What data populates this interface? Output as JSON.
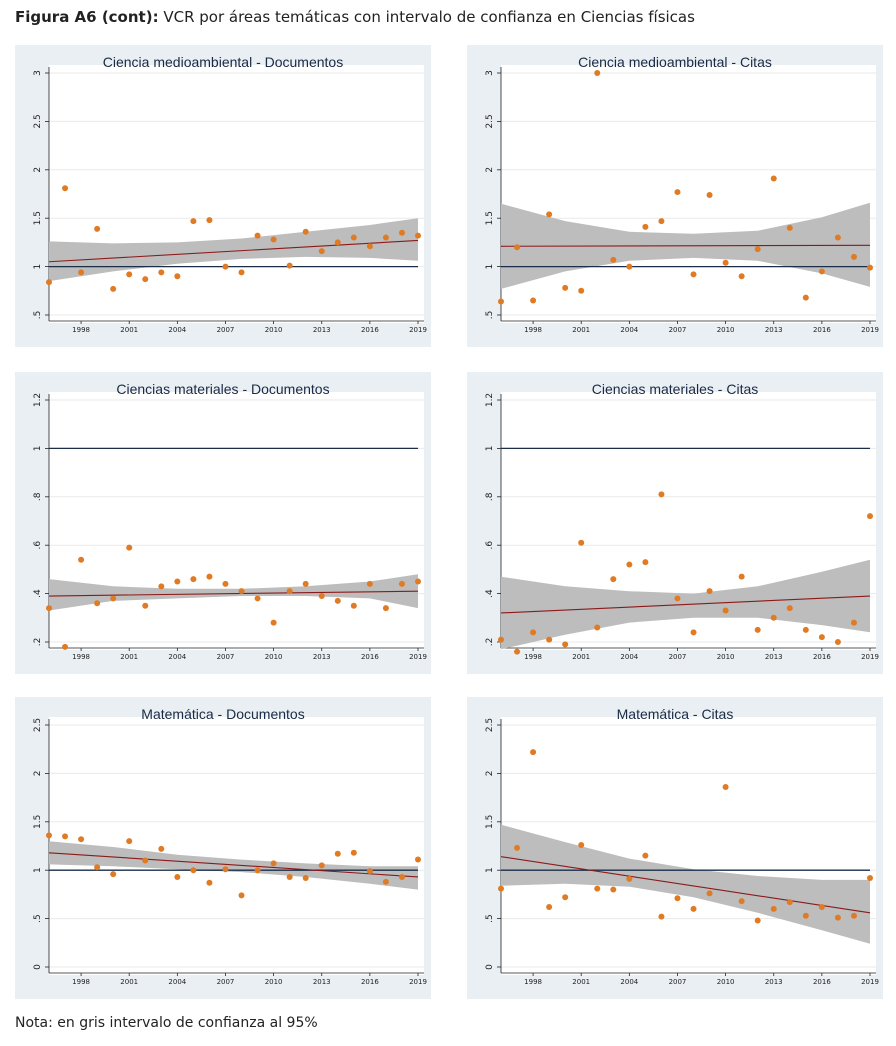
{
  "figure": {
    "title_bold": "Figura A6 (cont):",
    "title_rest": " VCR por áreas temáticas con intervalo de confianza en Ciencias físicas",
    "note": "Nota: en gris intervalo de confianza al 95%"
  },
  "colors": {
    "panel_bg": "#e9eff3",
    "band": "#bdbdbd",
    "point": "#e07b24",
    "trend": "#8b1a1a",
    "reference": "#1a2e4a"
  },
  "chart_data": [
    {
      "type": "scatter",
      "title": "Ciencia medioambiental - Documentos",
      "xlim": [
        1996,
        2019
      ],
      "ylim": [
        0.5,
        3
      ],
      "yticks": [
        0.5,
        1,
        1.5,
        2,
        2.5,
        3
      ],
      "ytick_labels": [
        ".5",
        "1",
        "1.5",
        "2",
        "2.5",
        "3"
      ],
      "xticks": [
        1998,
        2001,
        2004,
        2007,
        2010,
        2013,
        2016,
        2019
      ],
      "reference_line": 1,
      "points": {
        "x": [
          1996,
          1997,
          1998,
          1999,
          2000,
          2001,
          2002,
          2003,
          2004,
          2005,
          2006,
          2007,
          2008,
          2009,
          2010,
          2011,
          2012,
          2013,
          2014,
          2015,
          2016,
          2017,
          2018,
          2019
        ],
        "y": [
          0.84,
          1.81,
          0.94,
          1.39,
          0.77,
          0.92,
          0.87,
          0.94,
          0.9,
          1.47,
          1.48,
          1.0,
          0.94,
          1.32,
          1.28,
          1.01,
          1.36,
          1.16,
          1.25,
          1.3,
          1.21,
          1.3,
          1.35,
          1.32
        ]
      },
      "trend": {
        "x": [
          1996,
          2019
        ],
        "y": [
          1.05,
          1.27
        ]
      },
      "band": {
        "x": [
          1996,
          2000,
          2004,
          2008,
          2012,
          2016,
          2019
        ],
        "lower": [
          0.85,
          0.95,
          1.03,
          1.08,
          1.1,
          1.09,
          1.06
        ],
        "upper": [
          1.26,
          1.24,
          1.25,
          1.29,
          1.36,
          1.43,
          1.5
        ]
      }
    },
    {
      "type": "scatter",
      "title": "Ciencia medioambiental - Citas",
      "xlim": [
        1996,
        2019
      ],
      "ylim": [
        0.5,
        3
      ],
      "yticks": [
        0.5,
        1,
        1.5,
        2,
        2.5,
        3
      ],
      "ytick_labels": [
        ".5",
        "1",
        "1.5",
        "2",
        "2.5",
        "3"
      ],
      "xticks": [
        1998,
        2001,
        2004,
        2007,
        2010,
        2013,
        2016,
        2019
      ],
      "reference_line": 1,
      "points": {
        "x": [
          1996,
          1997,
          1998,
          1999,
          2000,
          2001,
          2002,
          2003,
          2004,
          2005,
          2006,
          2007,
          2008,
          2009,
          2010,
          2011,
          2012,
          2013,
          2014,
          2015,
          2016,
          2017,
          2018,
          2019
        ],
        "y": [
          0.64,
          1.2,
          0.65,
          1.54,
          0.78,
          0.75,
          3.0,
          1.07,
          1.0,
          1.41,
          1.47,
          1.77,
          0.92,
          1.74,
          1.04,
          0.9,
          1.18,
          1.91,
          1.4,
          0.68,
          0.95,
          1.3,
          1.1,
          0.99
        ]
      },
      "trend": {
        "x": [
          1996,
          2019
        ],
        "y": [
          1.21,
          1.22
        ]
      },
      "band": {
        "x": [
          1996,
          2000,
          2004,
          2008,
          2012,
          2016,
          2019
        ],
        "lower": [
          0.77,
          0.95,
          1.06,
          1.09,
          1.06,
          0.93,
          0.79
        ],
        "upper": [
          1.65,
          1.47,
          1.36,
          1.34,
          1.37,
          1.51,
          1.66
        ]
      }
    },
    {
      "type": "scatter",
      "title": "Ciencias materiales - Documentos",
      "xlim": [
        1996,
        2019
      ],
      "ylim": [
        0.2,
        1.2
      ],
      "yticks": [
        0.2,
        0.4,
        0.6,
        0.8,
        1,
        1.2
      ],
      "ytick_labels": [
        ".2",
        ".4",
        ".6",
        ".8",
        "1",
        "1.2"
      ],
      "xticks": [
        1998,
        2001,
        2004,
        2007,
        2010,
        2013,
        2016,
        2019
      ],
      "reference_line": 1,
      "points": {
        "x": [
          1996,
          1997,
          1998,
          1999,
          2000,
          2001,
          2002,
          2003,
          2004,
          2005,
          2006,
          2007,
          2008,
          2009,
          2010,
          2011,
          2012,
          2013,
          2014,
          2015,
          2016,
          2017,
          2018,
          2019
        ],
        "y": [
          0.34,
          0.18,
          0.54,
          0.36,
          0.38,
          0.59,
          0.35,
          0.43,
          0.45,
          0.46,
          0.47,
          0.44,
          0.41,
          0.38,
          0.28,
          0.41,
          0.44,
          0.39,
          0.37,
          0.35,
          0.44,
          0.34,
          0.44,
          0.45
        ]
      },
      "trend": {
        "x": [
          1996,
          2019
        ],
        "y": [
          0.39,
          0.41
        ]
      },
      "band": {
        "x": [
          1996,
          2000,
          2004,
          2008,
          2012,
          2016,
          2019
        ],
        "lower": [
          0.33,
          0.37,
          0.38,
          0.39,
          0.39,
          0.38,
          0.34
        ],
        "upper": [
          0.46,
          0.43,
          0.42,
          0.42,
          0.43,
          0.45,
          0.48
        ]
      }
    },
    {
      "type": "scatter",
      "title": "Ciencias materiales - Citas",
      "xlim": [
        1996,
        2019
      ],
      "ylim": [
        0.2,
        1.2
      ],
      "yticks": [
        0.2,
        0.4,
        0.6,
        0.8,
        1,
        1.2
      ],
      "ytick_labels": [
        ".2",
        ".4",
        ".6",
        ".8",
        "1",
        "1.2"
      ],
      "xticks": [
        1998,
        2001,
        2004,
        2007,
        2010,
        2013,
        2016,
        2019
      ],
      "reference_line": 1,
      "points": {
        "x": [
          1996,
          1997,
          1998,
          1999,
          2000,
          2001,
          2002,
          2003,
          2004,
          2005,
          2006,
          2007,
          2008,
          2009,
          2010,
          2011,
          2012,
          2013,
          2014,
          2015,
          2016,
          2017,
          2018,
          2019
        ],
        "y": [
          0.21,
          0.16,
          0.24,
          0.21,
          0.19,
          0.61,
          0.26,
          0.46,
          0.52,
          0.53,
          0.81,
          0.38,
          0.24,
          0.41,
          0.33,
          0.47,
          0.25,
          0.3,
          0.34,
          0.25,
          0.22,
          0.2,
          0.28,
          0.72
        ]
      },
      "trend": {
        "x": [
          1996,
          2019
        ],
        "y": [
          0.32,
          0.39
        ]
      },
      "band": {
        "x": [
          1996,
          2000,
          2004,
          2008,
          2012,
          2016,
          2019
        ],
        "lower": [
          0.17,
          0.23,
          0.28,
          0.3,
          0.3,
          0.27,
          0.24
        ],
        "upper": [
          0.47,
          0.43,
          0.41,
          0.4,
          0.43,
          0.49,
          0.54
        ]
      }
    },
    {
      "type": "scatter",
      "title": "Matemática - Documentos",
      "xlim": [
        1996,
        2019
      ],
      "ylim": [
        0,
        2.5
      ],
      "yticks": [
        0,
        0.5,
        1,
        1.5,
        2,
        2.5
      ],
      "ytick_labels": [
        "0",
        ".5",
        "1",
        "1.5",
        "2",
        "2.5"
      ],
      "xticks": [
        1998,
        2001,
        2004,
        2007,
        2010,
        2013,
        2016,
        2019
      ],
      "reference_line": 1,
      "points": {
        "x": [
          1996,
          1997,
          1998,
          1999,
          2000,
          2001,
          2002,
          2003,
          2004,
          2005,
          2006,
          2007,
          2008,
          2009,
          2010,
          2011,
          2012,
          2013,
          2014,
          2015,
          2016,
          2017,
          2018,
          2019
        ],
        "y": [
          1.36,
          1.35,
          1.32,
          1.03,
          0.96,
          1.3,
          1.1,
          1.22,
          0.93,
          1.0,
          0.87,
          1.01,
          0.74,
          1.0,
          1.07,
          0.93,
          0.92,
          1.05,
          1.17,
          1.18,
          0.99,
          0.88,
          0.93,
          1.11
        ]
      },
      "trend": {
        "x": [
          1996,
          2019
        ],
        "y": [
          1.18,
          0.93
        ]
      },
      "band": {
        "x": [
          1996,
          2000,
          2004,
          2008,
          2012,
          2016,
          2019
        ],
        "lower": [
          1.06,
          1.04,
          1.01,
          0.98,
          0.93,
          0.86,
          0.8
        ],
        "upper": [
          1.3,
          1.24,
          1.16,
          1.11,
          1.07,
          1.04,
          1.04
        ]
      }
    },
    {
      "type": "scatter",
      "title": "Matemática - Citas",
      "xlim": [
        1996,
        2019
      ],
      "ylim": [
        0,
        2.5
      ],
      "yticks": [
        0,
        0.5,
        1,
        1.5,
        2,
        2.5
      ],
      "ytick_labels": [
        "0",
        ".5",
        "1",
        "1.5",
        "2",
        "2.5"
      ],
      "xticks": [
        1998,
        2001,
        2004,
        2007,
        2010,
        2013,
        2016,
        2019
      ],
      "reference_line": 1,
      "points": {
        "x": [
          1996,
          1997,
          1998,
          1999,
          2000,
          2001,
          2002,
          2003,
          2004,
          2005,
          2006,
          2007,
          2008,
          2009,
          2010,
          2011,
          2012,
          2013,
          2014,
          2015,
          2016,
          2017,
          2018,
          2019
        ],
        "y": [
          0.81,
          1.23,
          2.22,
          0.62,
          0.72,
          1.26,
          0.81,
          0.8,
          0.91,
          1.15,
          0.52,
          0.71,
          0.6,
          0.76,
          1.86,
          0.68,
          0.48,
          0.6,
          0.67,
          0.53,
          0.62,
          0.51,
          0.53,
          0.92
        ]
      },
      "trend": {
        "x": [
          1996,
          2019
        ],
        "y": [
          1.14,
          0.56
        ]
      },
      "band": {
        "x": [
          1996,
          2000,
          2004,
          2008,
          2012,
          2016,
          2019
        ],
        "lower": [
          0.84,
          0.86,
          0.83,
          0.72,
          0.56,
          0.38,
          0.24
        ],
        "upper": [
          1.47,
          1.29,
          1.12,
          1.01,
          0.94,
          0.9,
          0.9
        ]
      }
    }
  ]
}
